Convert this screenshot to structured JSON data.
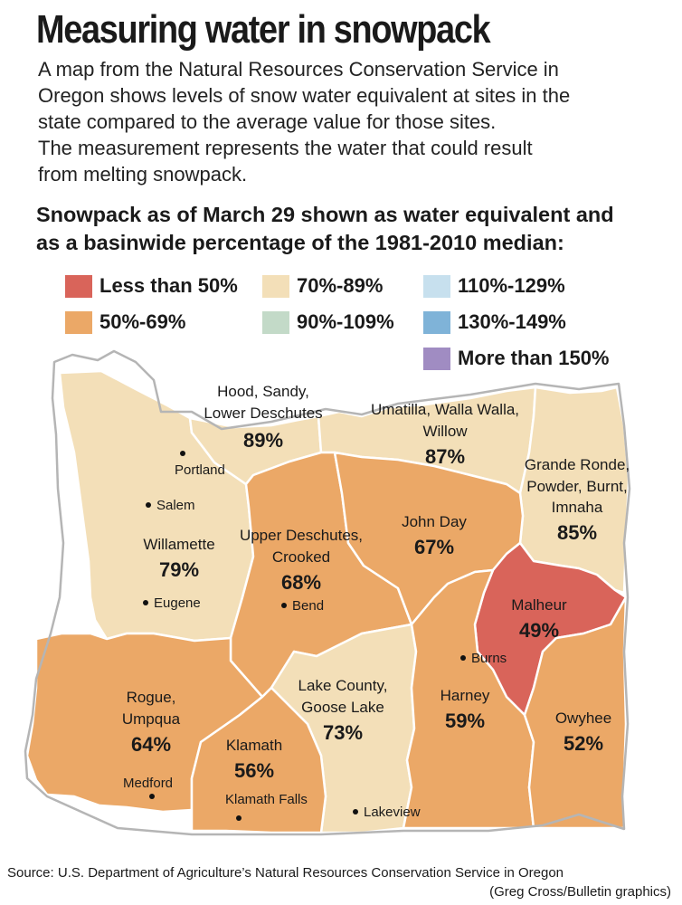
{
  "title": "Measuring water in snowpack",
  "intro": [
    "A map from the Natural Resources Conservation Service in",
    "Oregon shows levels of snow water equivalent at sites in the",
    "state compared to the average value for those sites.",
    "The measurement represents the water that could result",
    "from melting snowpack."
  ],
  "subhead": [
    "Snowpack as of March 29 shown as water equivalent and",
    "as a basinwide percentage of the 1981-2010 median:"
  ],
  "legend": [
    {
      "label": "Less than 50%",
      "color": "#d9645a"
    },
    {
      "label": "50%-69%",
      "color": "#eba867"
    },
    {
      "label": "70%-89%",
      "color": "#f3dfb8"
    },
    {
      "label": "90%-109%",
      "color": "#c3dac8"
    },
    {
      "label": "110%-129%",
      "color": "#c7e0ee"
    },
    {
      "label": "130%-149%",
      "color": "#7fb3d8"
    },
    {
      "label": "More than 150%",
      "color": "#a08cc2"
    }
  ],
  "basins": [
    {
      "name_lines": [
        "Hood, Sandy,",
        "Lower Deschutes"
      ],
      "percent": "89%",
      "category": "70%-89%"
    },
    {
      "name_lines": [
        "Umatilla, Walla Walla,",
        "Willow"
      ],
      "percent": "87%",
      "category": "70%-89%"
    },
    {
      "name_lines": [
        "Grande Ronde,",
        "Powder, Burnt,",
        "Imnaha"
      ],
      "percent": "85%",
      "category": "70%-89%"
    },
    {
      "name_lines": [
        "Willamette"
      ],
      "percent": "79%",
      "category": "70%-89%"
    },
    {
      "name_lines": [
        "Upper Deschutes,",
        "Crooked"
      ],
      "percent": "68%",
      "category": "50%-69%"
    },
    {
      "name_lines": [
        "John Day"
      ],
      "percent": "67%",
      "category": "50%-69%"
    },
    {
      "name_lines": [
        "Malheur"
      ],
      "percent": "49%",
      "category": "Less than 50%"
    },
    {
      "name_lines": [
        "Rogue,",
        "Umpqua"
      ],
      "percent": "64%",
      "category": "50%-69%"
    },
    {
      "name_lines": [
        "Lake County,",
        "Goose Lake"
      ],
      "percent": "73%",
      "category": "70%-89%"
    },
    {
      "name_lines": [
        "Harney"
      ],
      "percent": "59%",
      "category": "50%-69%"
    },
    {
      "name_lines": [
        "Owyhee"
      ],
      "percent": "52%",
      "category": "50%-69%"
    },
    {
      "name_lines": [
        "Klamath"
      ],
      "percent": "56%",
      "category": "50%-69%"
    }
  ],
  "cities": [
    "Portland",
    "Salem",
    "Eugene",
    "Bend",
    "Burns",
    "Medford",
    "Klamath Falls",
    "Lakeview"
  ],
  "source": "Source: U.S. Department of Agriculture’s Natural Resources Conservation Service in Oregon",
  "credit": "(Greg Cross/Bulletin graphics)"
}
